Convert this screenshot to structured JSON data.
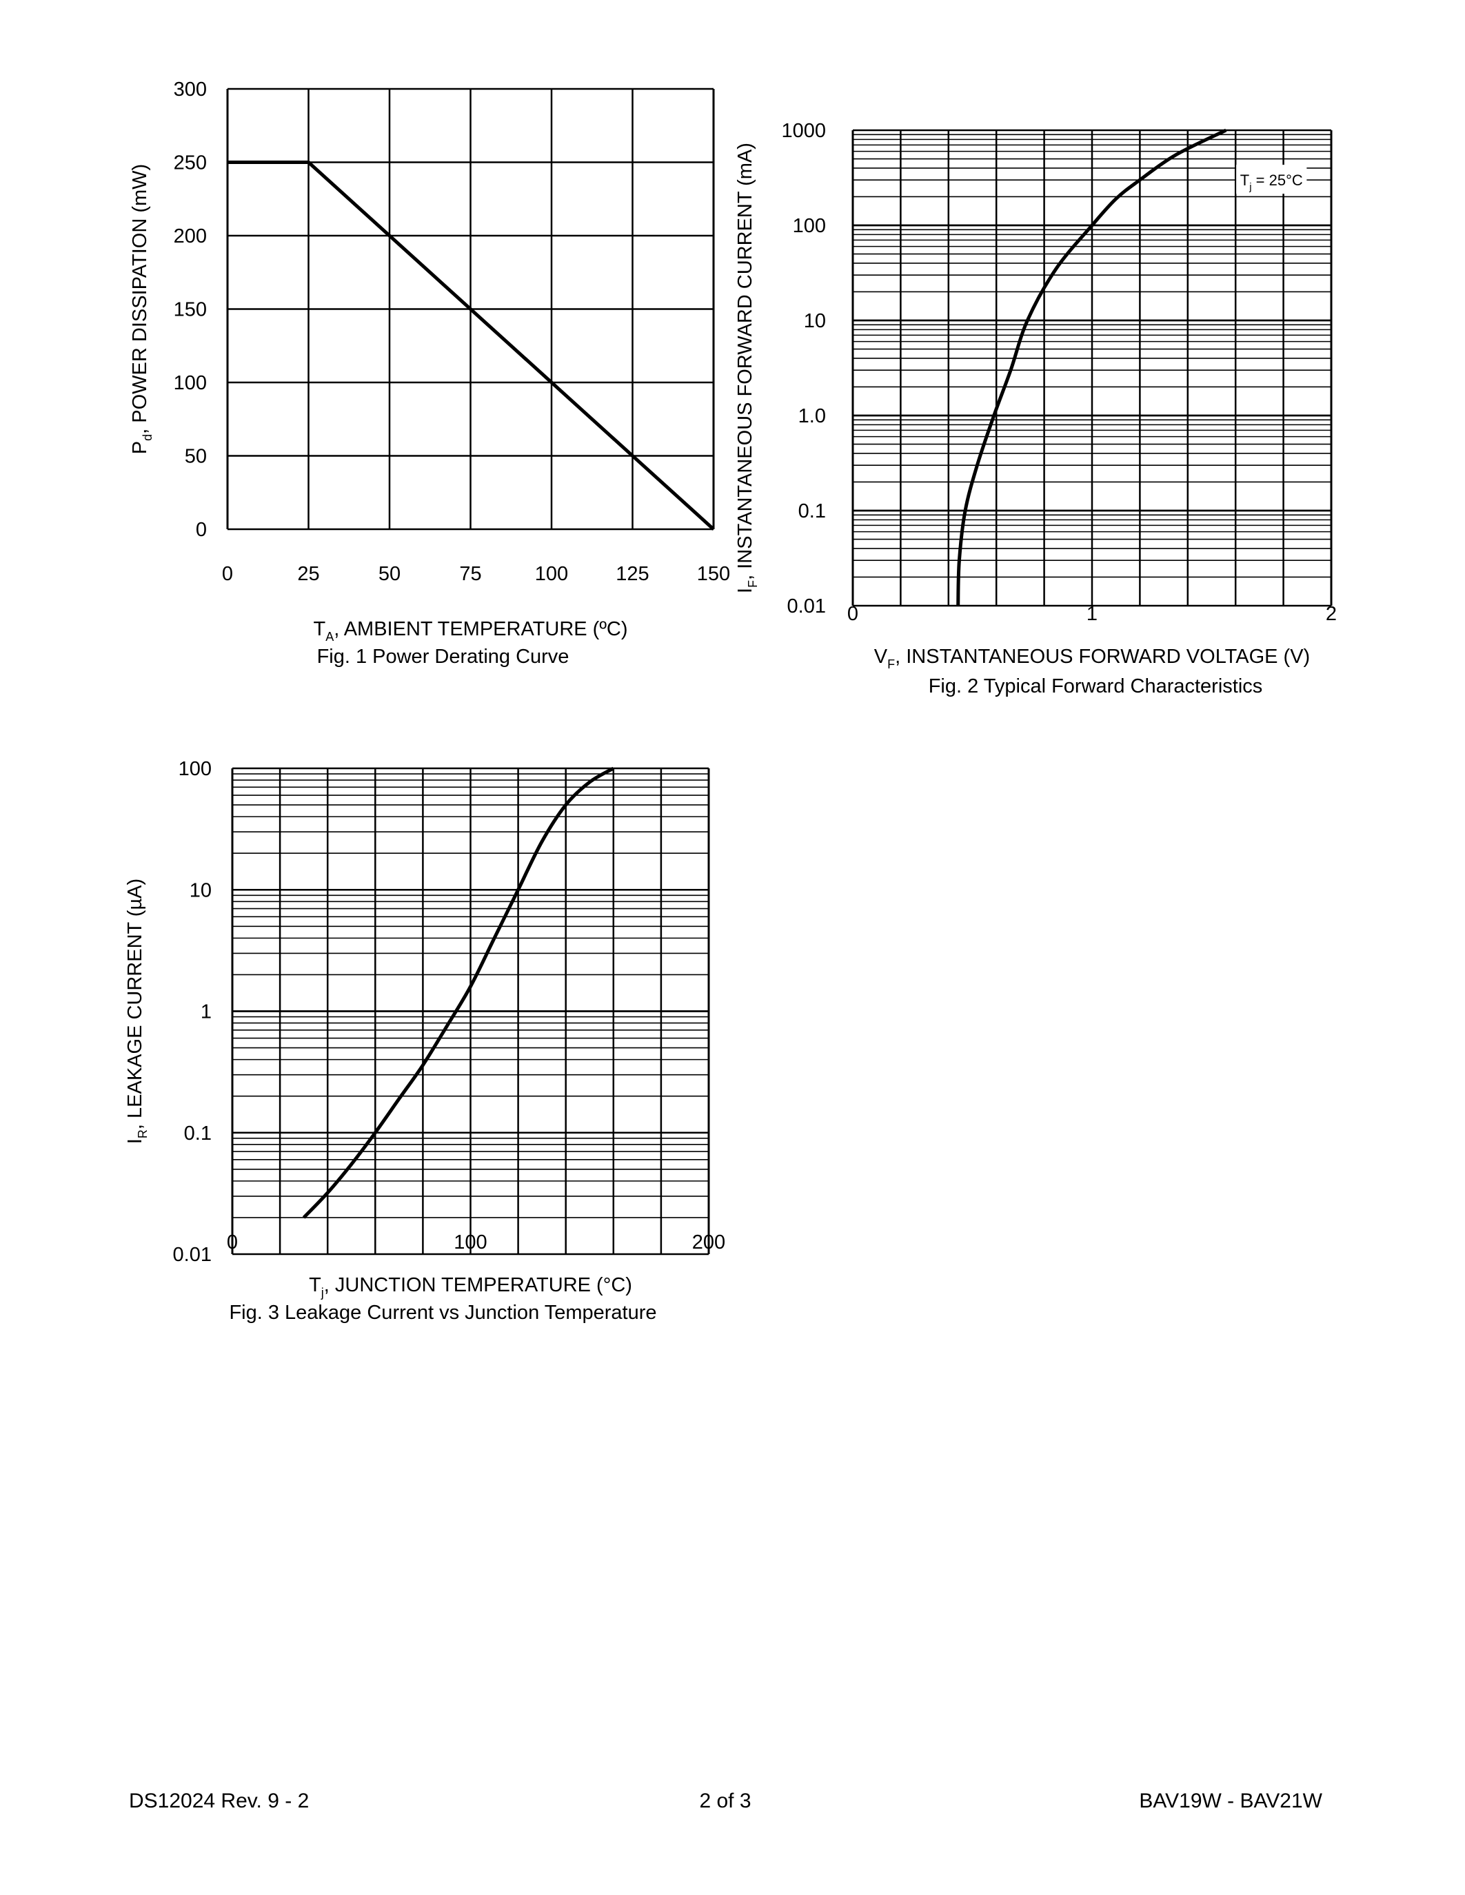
{
  "chart_data": [
    {
      "type": "line",
      "title": "Fig. 1  Power Derating Curve",
      "xlabel": {
        "main": "T",
        "sub": "A",
        "rest": ", AMBIENT TEMPERATURE (ºC)"
      },
      "ylabel": {
        "main": "P",
        "sub": "d",
        "rest": ", POWER DISSIPATION (mW)"
      },
      "xlim": [
        0,
        150
      ],
      "ylim": [
        0,
        300
      ],
      "x_scale": "linear",
      "y_scale": "linear",
      "grid": true,
      "x_ticks": [
        "0",
        "25",
        "50",
        "75",
        "100",
        "125",
        "150"
      ],
      "y_ticks": [
        "0",
        "50",
        "100",
        "150",
        "200",
        "250",
        "300"
      ],
      "series": [
        {
          "x": [
            0,
            25,
            150
          ],
          "y": [
            250,
            250,
            0
          ]
        }
      ]
    },
    {
      "type": "line",
      "title": "Fig. 2  Typical Forward Characteristics",
      "xlabel": {
        "main": "V",
        "sub": "F",
        "rest": ", INSTANTANEOUS FORWARD VOLTAGE (V)"
      },
      "ylabel": {
        "main": "I",
        "sub": "F",
        "rest": ", INSTANTANEOUS FORWARD CURRENT (mA)"
      },
      "xlim": [
        0,
        2
      ],
      "ylim": [
        0.01,
        1000
      ],
      "x_scale": "linear",
      "y_scale": "log",
      "grid": true,
      "x_ticks": [
        "0",
        "1",
        "2"
      ],
      "y_ticks": [
        "0.01",
        "0.1",
        "1.0",
        "10",
        "100",
        "1000"
      ],
      "annotation": {
        "main": "T",
        "sub": "j",
        "rest": " = 25°C"
      },
      "series": [
        {
          "x": [
            0.44,
            0.445,
            0.47,
            0.52,
            0.59,
            0.66,
            0.73,
            0.85,
            1.0,
            1.1,
            1.2,
            1.35,
            1.56
          ],
          "y": [
            0.01,
            0.03,
            0.1,
            0.3,
            1.0,
            3.0,
            10,
            35,
            100,
            190,
            300,
            550,
            1000
          ]
        }
      ]
    },
    {
      "type": "line",
      "title": "Fig. 3  Leakage Current vs Junction Temperature",
      "xlabel": {
        "main": "T",
        "sub": "j",
        "rest": ", JUNCTION TEMPERATURE (°C)"
      },
      "ylabel": {
        "main": "I",
        "sub": "R",
        "rest": ", LEAKAGE CURRENT (µA)"
      },
      "xlim": [
        0,
        200
      ],
      "ylim": [
        0.01,
        100
      ],
      "x_scale": "linear",
      "y_scale": "log",
      "grid": true,
      "x_ticks": [
        "0",
        "100",
        "200"
      ],
      "y_ticks": [
        "0.01",
        "0.1",
        "1",
        "10",
        "100"
      ],
      "series": [
        {
          "x": [
            30,
            40,
            50,
            60,
            70,
            80,
            90,
            100,
            110,
            120,
            130,
            140,
            150,
            160
          ],
          "y": [
            0.02,
            0.032,
            0.055,
            0.1,
            0.19,
            0.36,
            0.75,
            1.6,
            4.0,
            10,
            25,
            50,
            77,
            100
          ]
        }
      ]
    }
  ],
  "footer": {
    "doc_id": "DS12024 Rev. 9 - 2",
    "page": "2 of 3",
    "part": "BAV19W - BAV21W"
  }
}
